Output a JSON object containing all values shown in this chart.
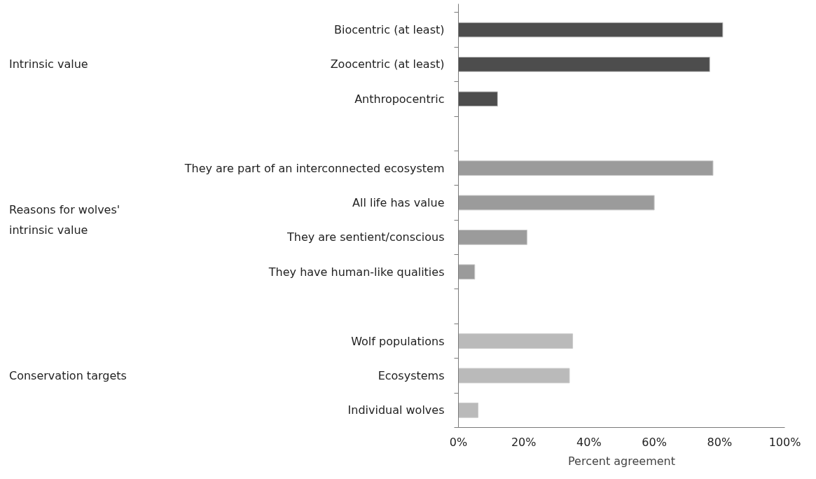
{
  "chart_data": {
    "type": "bar",
    "orientation": "horizontal",
    "categories": [
      "Biocentric (at least)",
      "Zoocentric (at least)",
      "Anthropocentric",
      null,
      "They are part of an interconnected ecosystem",
      "All life has value",
      "They are sentient/conscious",
      "They have human-like qualities",
      null,
      "Wolf populations",
      "Ecosystems",
      "Individual wolves"
    ],
    "values": [
      81,
      77,
      12,
      null,
      78,
      60,
      21,
      5,
      null,
      35,
      34,
      6
    ],
    "colors": [
      "#4d4d4d",
      "#4d4d4d",
      "#4d4d4d",
      null,
      "#9b9b9b",
      "#9b9b9b",
      "#9b9b9b",
      "#9b9b9b",
      null,
      "#bababa",
      "#bababa",
      "#bababa"
    ],
    "xlim": [
      0,
      100
    ],
    "xticks": [
      {
        "value": 0,
        "label": "0%"
      },
      {
        "value": 20,
        "label": "20%"
      },
      {
        "value": 40,
        "label": "40%"
      },
      {
        "value": 60,
        "label": "60%"
      },
      {
        "value": 80,
        "label": "80%"
      },
      {
        "value": 100,
        "label": "100%"
      }
    ],
    "xlabel": "Percent agreement",
    "annotations": [
      "Intrinsic value",
      "Reasons for wolves'\nintrinsic value",
      "Conservation targets"
    ],
    "grid": false
  }
}
